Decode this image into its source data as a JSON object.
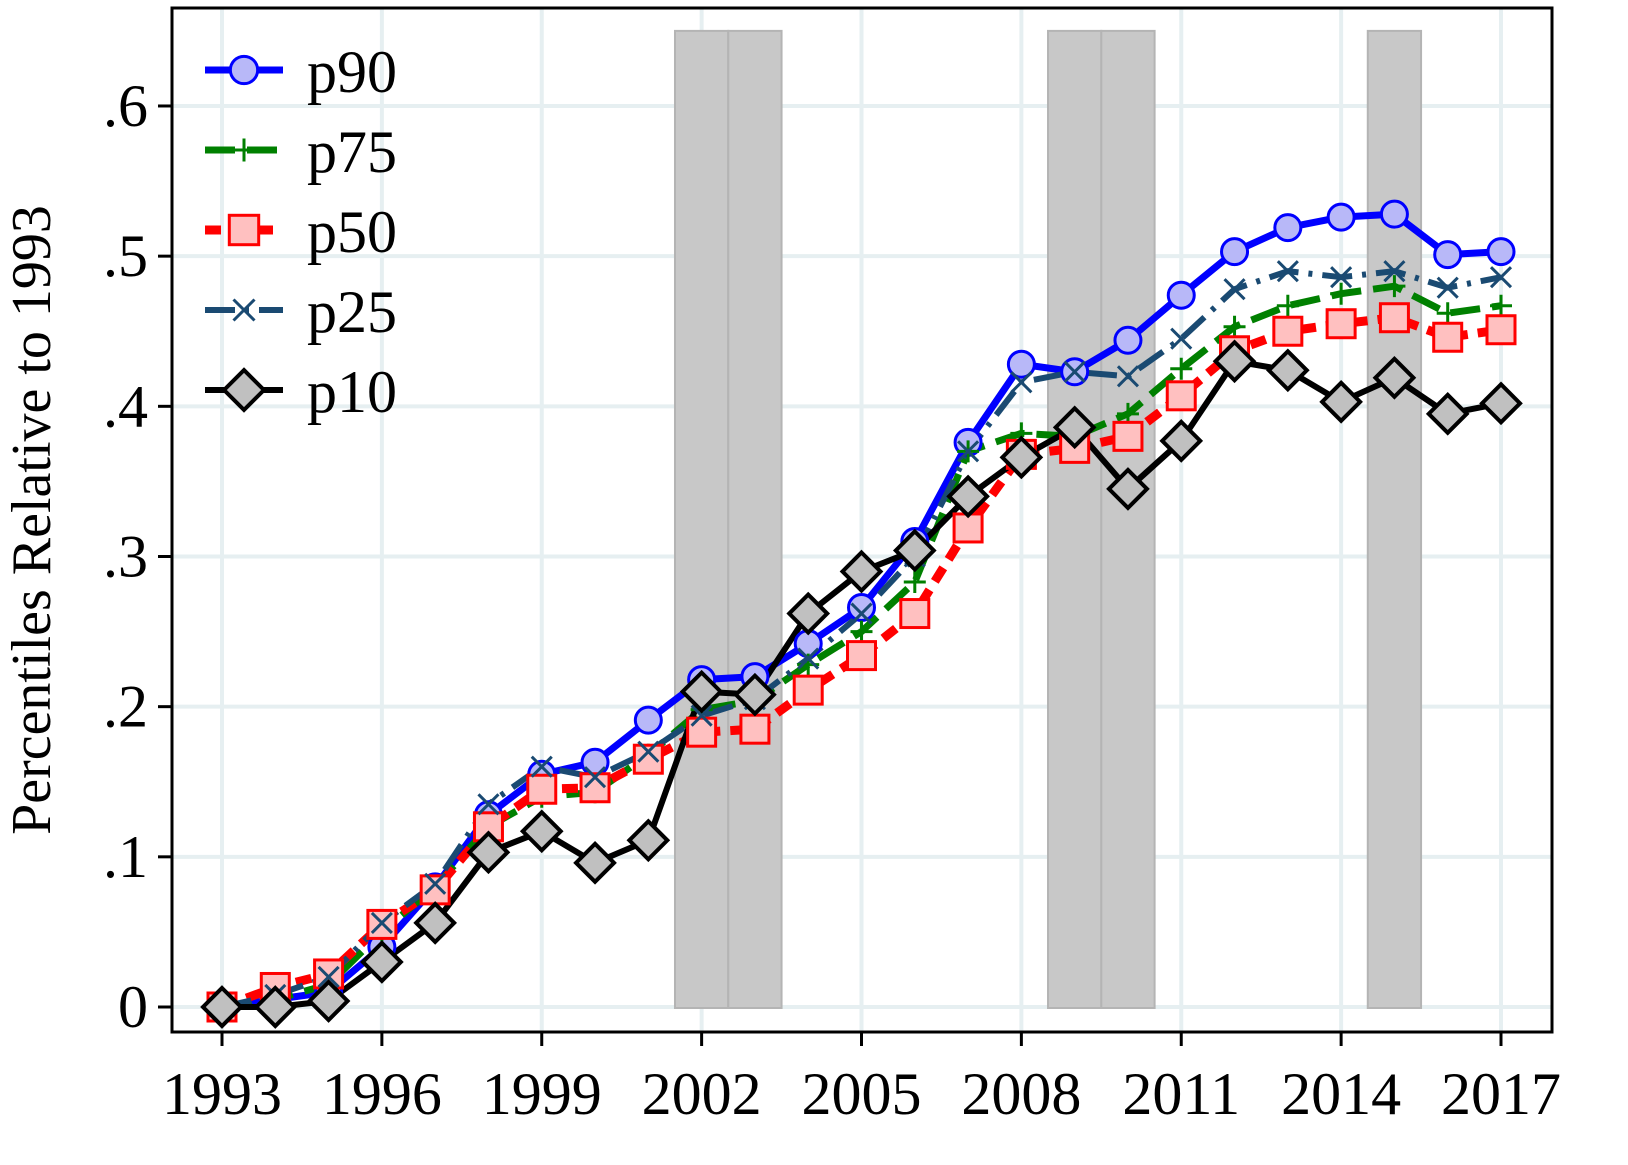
{
  "chart_data": {
    "type": "line",
    "title": "",
    "xlabel": "",
    "ylabel": "Percentiles Relative to 1993",
    "xlim": [
      1993,
      2017
    ],
    "ylim": [
      0,
      0.65
    ],
    "grid": true,
    "legend_position": "top-left",
    "x_ticks": [
      1993,
      1996,
      1999,
      2002,
      2005,
      2008,
      2011,
      2014,
      2017
    ],
    "x_tick_labels": [
      "1993",
      "1996",
      "1999",
      "2002",
      "2005",
      "2008",
      "2011",
      "2014",
      "2017"
    ],
    "y_ticks": [
      0,
      0.1,
      0.2,
      0.3,
      0.4,
      0.5,
      0.6
    ],
    "y_tick_labels": [
      "0",
      ".1",
      ".2",
      ".3",
      ".4",
      ".5",
      ".6"
    ],
    "shaded_periods": [
      [
        2001.5,
        2002.5
      ],
      [
        2002.5,
        2003.5
      ],
      [
        2008.5,
        2009.5
      ],
      [
        2009.5,
        2010.5
      ],
      [
        2014.5,
        2015.5
      ]
    ],
    "shade_color": "#c8c8c8",
    "x": [
      1993,
      1994,
      1995,
      1996,
      1997,
      1998,
      1999,
      2000,
      2001,
      2002,
      2003,
      2004,
      2005,
      2006,
      2007,
      2008,
      2009,
      2010,
      2011,
      2012,
      2013,
      2014,
      2015,
      2016,
      2017
    ],
    "series": [
      {
        "name": "p90",
        "color": "#0000ff",
        "marker": "circle",
        "marker_fill": "#b8b8f8",
        "dash": "solid",
        "values": [
          0,
          0.005,
          0.01,
          0.04,
          0.08,
          0.128,
          0.155,
          0.163,
          0.191,
          0.218,
          0.22,
          0.242,
          0.266,
          0.31,
          0.376,
          0.428,
          0.423,
          0.444,
          0.474,
          0.503,
          0.519,
          0.526,
          0.528,
          0.501,
          0.503
        ]
      },
      {
        "name": "p75",
        "color": "#008000",
        "marker": "plus",
        "marker_fill": "#008000",
        "dash": "long-dash",
        "values": [
          0,
          0.005,
          0.015,
          0.05,
          0.08,
          0.12,
          0.14,
          0.143,
          0.168,
          0.198,
          0.204,
          0.228,
          0.25,
          0.283,
          0.37,
          0.382,
          0.38,
          0.395,
          0.425,
          0.453,
          0.467,
          0.475,
          0.48,
          0.462,
          0.467
        ]
      },
      {
        "name": "p50",
        "color": "#ff0000",
        "marker": "square",
        "marker_fill": "#ffc0c0",
        "dash": "short-dash",
        "values": [
          0,
          0.013,
          0.022,
          0.055,
          0.078,
          0.12,
          0.145,
          0.146,
          0.165,
          0.183,
          0.185,
          0.211,
          0.234,
          0.262,
          0.319,
          0.368,
          0.372,
          0.38,
          0.407,
          0.437,
          0.45,
          0.455,
          0.459,
          0.446,
          0.451
        ]
      },
      {
        "name": "p25",
        "color": "#1a4a72",
        "marker": "x",
        "marker_fill": "#1a4a72",
        "dash": "dash-dot",
        "values": [
          0,
          0.008,
          0.02,
          0.056,
          0.082,
          0.135,
          0.16,
          0.153,
          0.17,
          0.194,
          0.205,
          0.232,
          0.262,
          0.3,
          0.37,
          0.416,
          0.423,
          0.42,
          0.445,
          0.478,
          0.49,
          0.486,
          0.49,
          0.479,
          0.486
        ]
      },
      {
        "name": "p10",
        "color": "#000000",
        "marker": "diamond",
        "marker_fill": "#c0c0c0",
        "dash": "solid",
        "values": [
          0,
          0,
          0.004,
          0.03,
          0.056,
          0.103,
          0.117,
          0.096,
          0.111,
          0.21,
          0.208,
          0.262,
          0.29,
          0.304,
          0.34,
          0.366,
          0.386,
          0.345,
          0.377,
          0.43,
          0.424,
          0.403,
          0.419,
          0.395,
          0.402
        ]
      }
    ]
  }
}
